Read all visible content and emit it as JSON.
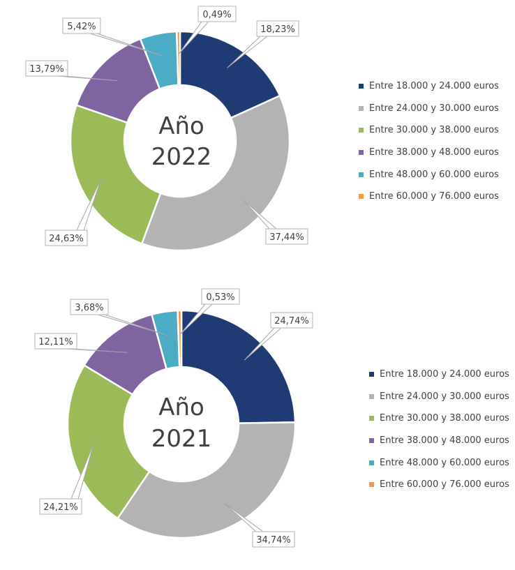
{
  "chart_data": [
    {
      "type": "donut",
      "center_text": [
        "Año",
        "2022"
      ],
      "categories": [
        "Entre 18.000 y 24.000 euros",
        "Entre 24.000 y 30.000 euros",
        "Entre 30.000 y 38.000 euros",
        "Entre 38.000 y 48.000 euros",
        "Entre 48.000 y 60.000 euros",
        "Entre 60.000 y 76.000 euros"
      ],
      "values": [
        18.23,
        37.44,
        24.63,
        13.79,
        5.42,
        0.49
      ],
      "labels": [
        "18,23%",
        "37,44%",
        "24,63%",
        "13,79%",
        "5,42%",
        "0,49%"
      ],
      "colors": [
        "#1f3b73",
        "#b3b3b3",
        "#9bbb59",
        "#8064a2",
        "#4bacc6",
        "#f79646"
      ],
      "legend_position": "right"
    },
    {
      "type": "donut",
      "center_text": [
        "Año",
        "2021"
      ],
      "categories": [
        "Entre 18.000 y 24.000 euros",
        "Entre 24.000 y 30.000 euros",
        "Entre 30.000 y 38.000 euros",
        "Entre 38.000 y 48.000 euros",
        "Entre 48.000 y 60.000 euros",
        "Entre 60.000 y 76.000 euros"
      ],
      "values": [
        24.74,
        34.74,
        24.21,
        12.11,
        3.68,
        0.53
      ],
      "labels": [
        "24,74%",
        "34,74%",
        "24,21%",
        "12,11%",
        "3,68%",
        "0,53%"
      ],
      "colors": [
        "#1f3b73",
        "#b3b3b3",
        "#9bbb59",
        "#8064a2",
        "#4bacc6",
        "#f79646"
      ],
      "legend_position": "right"
    }
  ]
}
